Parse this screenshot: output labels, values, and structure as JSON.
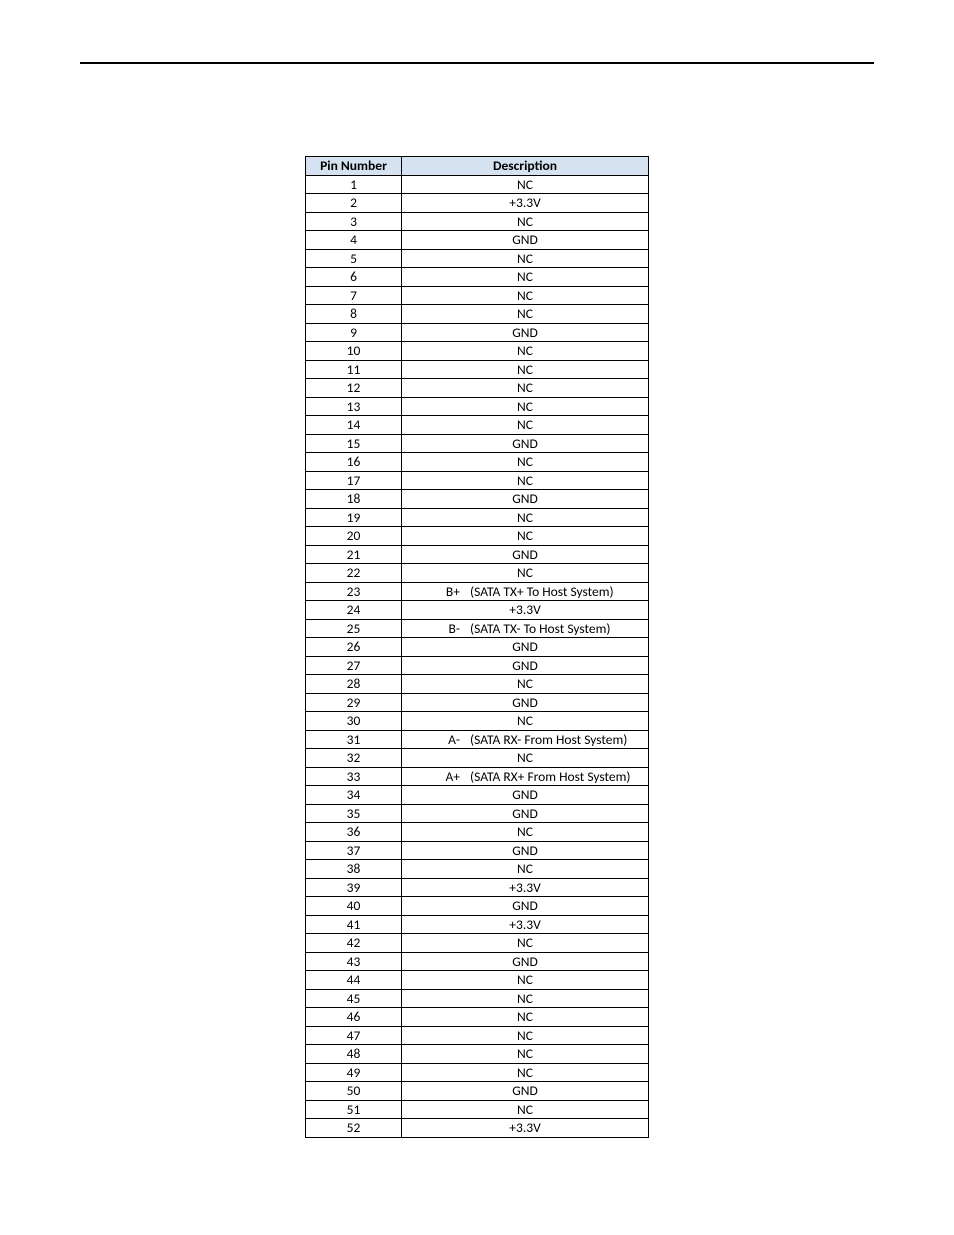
{
  "table": {
    "headers": {
      "pin": "Pin Number",
      "desc": "Description"
    },
    "header_bg": "#d6e2f0",
    "border_color": "#000000",
    "rows": [
      {
        "pin": "1",
        "prefix": "",
        "desc": "NC"
      },
      {
        "pin": "2",
        "prefix": "",
        "desc": "+3.3V"
      },
      {
        "pin": "3",
        "prefix": "",
        "desc": "NC"
      },
      {
        "pin": "4",
        "prefix": "",
        "desc": "GND"
      },
      {
        "pin": "5",
        "prefix": "",
        "desc": "NC"
      },
      {
        "pin": "6",
        "prefix": "",
        "desc": "NC"
      },
      {
        "pin": "7",
        "prefix": "",
        "desc": "NC"
      },
      {
        "pin": "8",
        "prefix": "",
        "desc": "NC"
      },
      {
        "pin": "9",
        "prefix": "",
        "desc": "GND"
      },
      {
        "pin": "10",
        "prefix": "",
        "desc": "NC"
      },
      {
        "pin": "11",
        "prefix": "",
        "desc": "NC"
      },
      {
        "pin": "12",
        "prefix": "",
        "desc": "NC"
      },
      {
        "pin": "13",
        "prefix": "",
        "desc": "NC"
      },
      {
        "pin": "14",
        "prefix": "",
        "desc": "NC"
      },
      {
        "pin": "15",
        "prefix": "",
        "desc": "GND"
      },
      {
        "pin": "16",
        "prefix": "",
        "desc": "NC"
      },
      {
        "pin": "17",
        "prefix": "",
        "desc": "NC"
      },
      {
        "pin": "18",
        "prefix": "",
        "desc": "GND"
      },
      {
        "pin": "19",
        "prefix": "",
        "desc": "NC"
      },
      {
        "pin": "20",
        "prefix": "",
        "desc": "NC"
      },
      {
        "pin": "21",
        "prefix": "",
        "desc": "GND"
      },
      {
        "pin": "22",
        "prefix": "",
        "desc": "NC"
      },
      {
        "pin": "23",
        "prefix": "B+",
        "desc": "(SATA TX+ To Host System)"
      },
      {
        "pin": "24",
        "prefix": "",
        "desc": "+3.3V"
      },
      {
        "pin": "25",
        "prefix": "B-",
        "desc": "(SATA TX- To Host System)"
      },
      {
        "pin": "26",
        "prefix": "",
        "desc": "GND"
      },
      {
        "pin": "27",
        "prefix": "",
        "desc": "GND"
      },
      {
        "pin": "28",
        "prefix": "",
        "desc": "NC"
      },
      {
        "pin": "29",
        "prefix": "",
        "desc": "GND"
      },
      {
        "pin": "30",
        "prefix": "",
        "desc": "NC"
      },
      {
        "pin": "31",
        "prefix": "A-",
        "desc": "(SATA RX- From Host System)"
      },
      {
        "pin": "32",
        "prefix": "",
        "desc": "NC"
      },
      {
        "pin": "33",
        "prefix": "A+",
        "desc": "(SATA RX+ From Host System)"
      },
      {
        "pin": "34",
        "prefix": "",
        "desc": "GND"
      },
      {
        "pin": "35",
        "prefix": "",
        "desc": "GND"
      },
      {
        "pin": "36",
        "prefix": "",
        "desc": "NC"
      },
      {
        "pin": "37",
        "prefix": "",
        "desc": "GND"
      },
      {
        "pin": "38",
        "prefix": "",
        "desc": "NC"
      },
      {
        "pin": "39",
        "prefix": "",
        "desc": "+3.3V"
      },
      {
        "pin": "40",
        "prefix": "",
        "desc": "GND"
      },
      {
        "pin": "41",
        "prefix": "",
        "desc": "+3.3V"
      },
      {
        "pin": "42",
        "prefix": "",
        "desc": "NC"
      },
      {
        "pin": "43",
        "prefix": "",
        "desc": "GND"
      },
      {
        "pin": "44",
        "prefix": "",
        "desc": "NC"
      },
      {
        "pin": "45",
        "prefix": "",
        "desc": "NC"
      },
      {
        "pin": "46",
        "prefix": "",
        "desc": "NC"
      },
      {
        "pin": "47",
        "prefix": "",
        "desc": "NC"
      },
      {
        "pin": "48",
        "prefix": "",
        "desc": "NC"
      },
      {
        "pin": "49",
        "prefix": "",
        "desc": "NC"
      },
      {
        "pin": "50",
        "prefix": "",
        "desc": "GND"
      },
      {
        "pin": "51",
        "prefix": "",
        "desc": "NC"
      },
      {
        "pin": "52",
        "prefix": "",
        "desc": "+3.3V"
      }
    ]
  }
}
